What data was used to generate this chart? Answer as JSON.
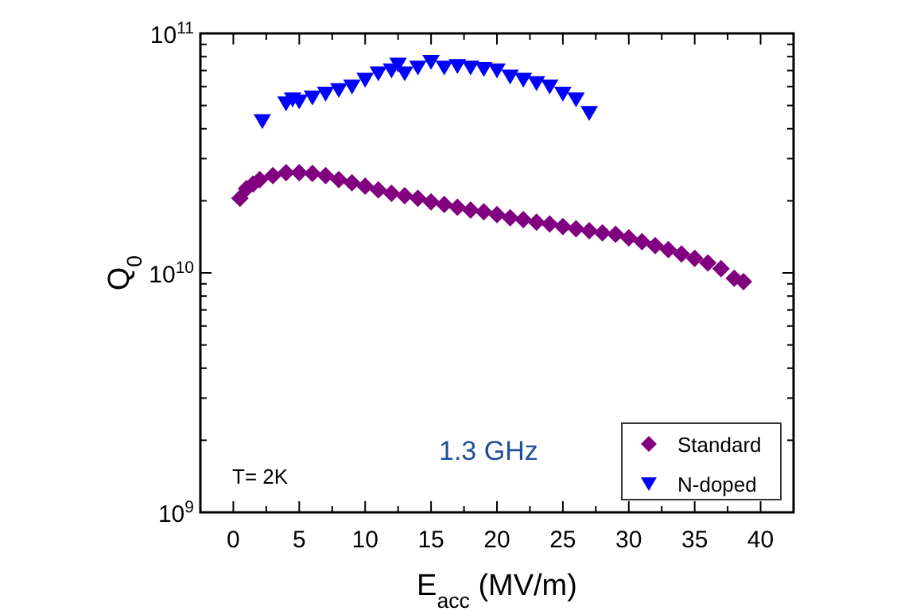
{
  "chart_data": {
    "type": "scatter",
    "xlabel": "E$_{acc}$ (MV/m)",
    "ylabel": "Q$_{0}$",
    "log": "y",
    "grid": false,
    "legend": "bottom right",
    "xlim": [
      -2.5,
      42.5
    ],
    "xticks": [
      0,
      {
        "value": 2.5,
        "label": null
      },
      5,
      {
        "value": 7.5,
        "label": null
      },
      10,
      {
        "value": 12.5,
        "label": null
      },
      15,
      {
        "value": 17.5,
        "label": null
      },
      20,
      {
        "value": 22.5,
        "label": null
      },
      25,
      {
        "value": 27.5,
        "label": null
      },
      30,
      {
        "value": 32.5,
        "label": null
      },
      35,
      {
        "value": 37.5,
        "label": null
      },
      40
    ],
    "ylim": [
      1000000000,
      100000000000
    ],
    "yticks": [
      {
        "value": 1000000000,
        "label": "10$^{9}$"
      },
      {
        "value": 2000000000,
        "label": null
      },
      {
        "value": 3000000000,
        "label": null
      },
      {
        "value": 4000000000,
        "label": null
      },
      {
        "value": 5000000000,
        "label": null
      },
      {
        "value": 6000000000,
        "label": null
      },
      {
        "value": 7000000000,
        "label": null
      },
      {
        "value": 8000000000,
        "label": null
      },
      {
        "value": 9000000000,
        "label": null
      },
      {
        "value": 10000000000,
        "label": "10$^{10}$"
      },
      {
        "value": 20000000000,
        "label": null
      },
      {
        "value": 30000000000,
        "label": null
      },
      {
        "value": 40000000000,
        "label": null
      },
      {
        "value": 50000000000,
        "label": null
      },
      {
        "value": 60000000000,
        "label": null
      },
      {
        "value": 70000000000,
        "label": null
      },
      {
        "value": 80000000000,
        "label": null
      },
      {
        "value": 90000000000,
        "label": null
      },
      {
        "value": 100000000000,
        "label": "10$^{11}$"
      }
    ],
    "annotations": [
      "T= 2K",
      "1.3 GHz"
    ],
    "series": [
      {
        "name": "Standard",
        "color": "#800080",
        "marker": "diamond",
        "x": [
          0.5,
          1,
          1.5,
          2,
          3,
          4,
          5,
          6,
          7,
          8,
          9,
          10,
          11,
          12,
          13,
          14,
          15,
          16,
          17,
          18,
          19,
          20,
          21,
          22,
          23,
          24,
          25,
          26,
          27,
          28,
          29,
          30,
          31,
          32,
          33,
          34,
          35,
          36,
          37,
          38,
          38.7
        ],
        "values": [
          20500000000,
          22500000000,
          23500000000,
          24500000000,
          25500000000,
          26200000000,
          26200000000,
          26000000000,
          25500000000,
          24500000000,
          23800000000,
          23000000000,
          22200000000,
          21500000000,
          21000000000,
          20500000000,
          19800000000,
          19300000000,
          18800000000,
          18300000000,
          18000000000,
          17500000000,
          17000000000,
          16700000000,
          16300000000,
          16000000000,
          15600000000,
          15300000000,
          15000000000,
          14700000000,
          14500000000,
          14000000000,
          13500000000,
          13000000000,
          12500000000,
          12000000000,
          11500000000,
          11000000000,
          10400000000,
          9500000000,
          9200000000
        ]
      },
      {
        "name": "N-doped",
        "color": "#0000ff",
        "marker": "triangle",
        "x": [
          2.2,
          4,
          4.5,
          5,
          6,
          7,
          8,
          9,
          10,
          11,
          12,
          12.5,
          13,
          14,
          15,
          16,
          17,
          18,
          19,
          20,
          21,
          22,
          23,
          24,
          25,
          26,
          27
        ],
        "values": [
          43000000000,
          51000000000,
          53000000000,
          52000000000,
          54000000000,
          56000000000,
          58000000000,
          60000000000,
          64000000000,
          68000000000,
          70000000000,
          74000000000,
          68000000000,
          72000000000,
          76000000000,
          72000000000,
          73000000000,
          72000000000,
          71000000000,
          70000000000,
          66000000000,
          64000000000,
          62000000000,
          60000000000,
          56000000000,
          53000000000,
          46500000000
        ]
      }
    ]
  }
}
